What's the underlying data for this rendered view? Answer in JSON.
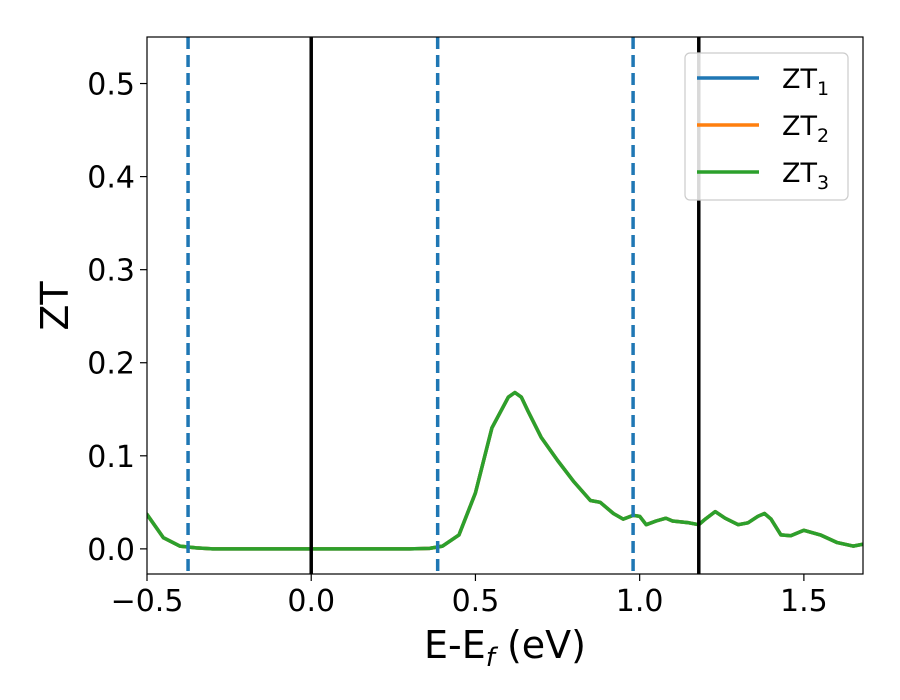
{
  "chart_data": {
    "type": "line",
    "xlabel": "E-E",
    "xlabel_subscript": "f",
    "xlabel_unit": " (eV)",
    "ylabel": "ZT",
    "xlim": [
      -0.5,
      1.68
    ],
    "ylim": [
      -0.027,
      0.55
    ],
    "xticks": [
      -0.5,
      0.0,
      0.5,
      1.0,
      1.5
    ],
    "xtick_labels": [
      "−0.5",
      "0.0",
      "0.5",
      "1.0",
      "1.5"
    ],
    "yticks": [
      0.0,
      0.1,
      0.2,
      0.3,
      0.4,
      0.5
    ],
    "ytick_labels": [
      "0.0",
      "0.1",
      "0.2",
      "0.3",
      "0.4",
      "0.5"
    ],
    "grid": false,
    "legend_position": "top-right",
    "vlines_solid": [
      0.0,
      1.18
    ],
    "vlines_dashed": [
      -0.375,
      0.385,
      0.98
    ],
    "vline_solid_color": "#000000",
    "vline_dashed_color": "#1f77b4",
    "series": [
      {
        "name": "ZT",
        "name_subscript": "1",
        "color": "#1f77b4",
        "x": [
          -0.5,
          -0.45,
          -0.4,
          -0.35,
          -0.3,
          0.0,
          0.3,
          0.36,
          0.4,
          0.45,
          0.5,
          0.55,
          0.6,
          0.62,
          0.64,
          0.66,
          0.7,
          0.75,
          0.8,
          0.85,
          0.88,
          0.92,
          0.95,
          0.98,
          1.0,
          1.02,
          1.05,
          1.08,
          1.1,
          1.15,
          1.18,
          1.2,
          1.23,
          1.26,
          1.3,
          1.33,
          1.36,
          1.38,
          1.4,
          1.43,
          1.46,
          1.5,
          1.55,
          1.6,
          1.65,
          1.68
        ],
        "y": [
          0.037,
          0.012,
          0.003,
          0.001,
          0.0,
          0.0,
          0.0,
          0.0005,
          0.003,
          0.015,
          0.06,
          0.13,
          0.163,
          0.168,
          0.163,
          0.148,
          0.12,
          0.095,
          0.072,
          0.052,
          0.05,
          0.038,
          0.032,
          0.036,
          0.035,
          0.026,
          0.03,
          0.033,
          0.03,
          0.028,
          0.026,
          0.032,
          0.04,
          0.033,
          0.026,
          0.028,
          0.035,
          0.038,
          0.032,
          0.015,
          0.014,
          0.02,
          0.015,
          0.007,
          0.003,
          0.005
        ]
      },
      {
        "name": "ZT",
        "name_subscript": "2",
        "color": "#ff7f0e",
        "x": [
          -0.5,
          -0.45,
          -0.4,
          -0.35,
          -0.3,
          0.0,
          0.3,
          0.36,
          0.4,
          0.45,
          0.5,
          0.55,
          0.6,
          0.62,
          0.64,
          0.66,
          0.7,
          0.75,
          0.8,
          0.85,
          0.88,
          0.92,
          0.95,
          0.98,
          1.0,
          1.02,
          1.05,
          1.08,
          1.1,
          1.15,
          1.18,
          1.2,
          1.23,
          1.26,
          1.3,
          1.33,
          1.36,
          1.38,
          1.4,
          1.43,
          1.46,
          1.5,
          1.55,
          1.6,
          1.65,
          1.68
        ],
        "y": [
          0.037,
          0.012,
          0.003,
          0.001,
          0.0,
          0.0,
          0.0,
          0.0005,
          0.003,
          0.015,
          0.06,
          0.13,
          0.163,
          0.168,
          0.163,
          0.148,
          0.12,
          0.095,
          0.072,
          0.052,
          0.05,
          0.038,
          0.032,
          0.036,
          0.035,
          0.026,
          0.03,
          0.033,
          0.03,
          0.028,
          0.026,
          0.032,
          0.04,
          0.033,
          0.026,
          0.028,
          0.035,
          0.038,
          0.032,
          0.015,
          0.014,
          0.02,
          0.015,
          0.007,
          0.003,
          0.005
        ]
      },
      {
        "name": "ZT",
        "name_subscript": "3",
        "color": "#2ca02c",
        "x": [
          -0.5,
          -0.45,
          -0.4,
          -0.35,
          -0.3,
          0.0,
          0.3,
          0.36,
          0.4,
          0.45,
          0.5,
          0.55,
          0.6,
          0.62,
          0.64,
          0.66,
          0.7,
          0.75,
          0.8,
          0.85,
          0.88,
          0.92,
          0.95,
          0.98,
          1.0,
          1.02,
          1.05,
          1.08,
          1.1,
          1.15,
          1.18,
          1.2,
          1.23,
          1.26,
          1.3,
          1.33,
          1.36,
          1.38,
          1.4,
          1.43,
          1.46,
          1.5,
          1.55,
          1.6,
          1.65,
          1.68
        ],
        "y": [
          0.037,
          0.012,
          0.003,
          0.001,
          0.0,
          0.0,
          0.0,
          0.0005,
          0.003,
          0.015,
          0.06,
          0.13,
          0.163,
          0.168,
          0.163,
          0.148,
          0.12,
          0.095,
          0.072,
          0.052,
          0.05,
          0.038,
          0.032,
          0.036,
          0.035,
          0.026,
          0.03,
          0.033,
          0.03,
          0.028,
          0.026,
          0.032,
          0.04,
          0.033,
          0.026,
          0.028,
          0.035,
          0.038,
          0.032,
          0.015,
          0.014,
          0.02,
          0.015,
          0.007,
          0.003,
          0.005
        ]
      }
    ]
  }
}
